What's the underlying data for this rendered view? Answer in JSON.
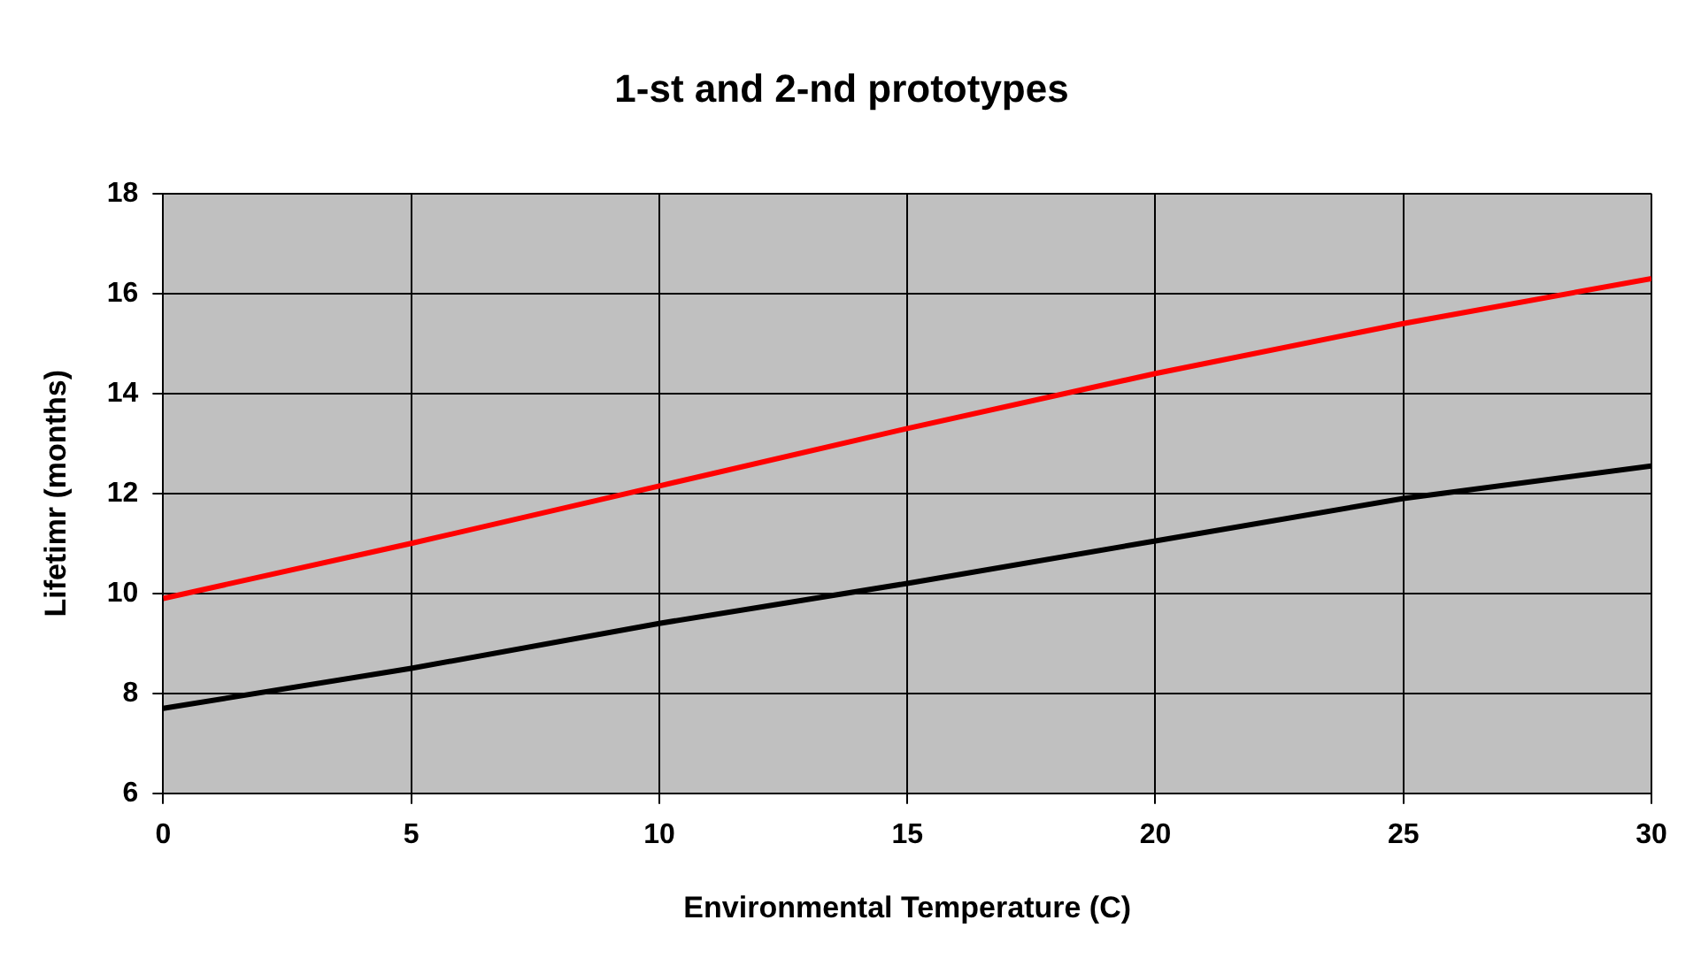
{
  "chart_data": {
    "type": "line",
    "title": "1-st and 2-nd prototypes",
    "xlabel": "Environmental Temperature (C)",
    "ylabel": "Lifetimr (months)",
    "x": [
      0,
      5,
      10,
      15,
      20,
      25,
      30
    ],
    "series": [
      {
        "color": "#ff0000",
        "values": [
          9.9,
          11.0,
          12.15,
          13.3,
          14.4,
          15.4,
          16.3
        ]
      },
      {
        "color": "#000000",
        "values": [
          7.7,
          8.5,
          9.4,
          10.2,
          11.05,
          11.9,
          12.55
        ]
      }
    ],
    "xlim": [
      0,
      30
    ],
    "xticks": [
      0,
      5,
      10,
      15,
      20,
      25,
      30
    ],
    "ylim": [
      6,
      18
    ],
    "yticks": [
      6,
      8,
      10,
      12,
      14,
      16,
      18
    ],
    "grid": true,
    "legend": false,
    "marker": "none",
    "line_style": "solid"
  }
}
